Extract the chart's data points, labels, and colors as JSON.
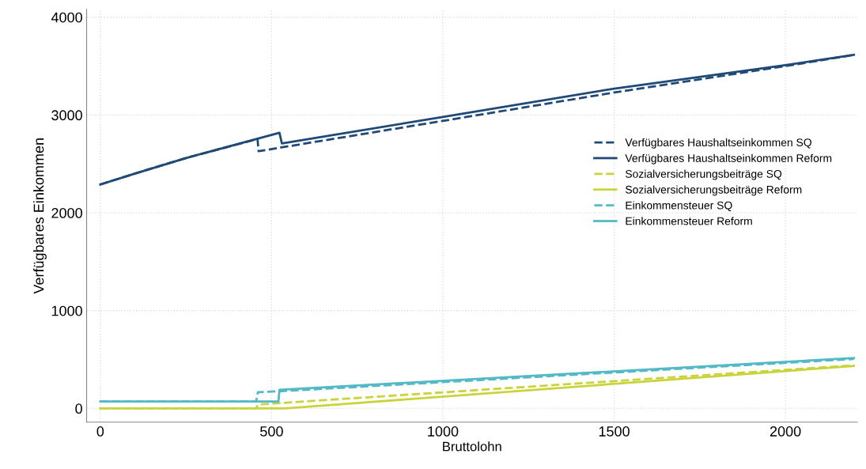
{
  "chart_data": {
    "type": "line",
    "xlabel": "Bruttolohn",
    "ylabel": "Verfügbares Einkommen",
    "xlim": [
      -40,
      2210
    ],
    "ylim": [
      -140,
      4080
    ],
    "xticks": [
      0,
      500,
      1000,
      1500,
      2000
    ],
    "yticks": [
      0,
      1000,
      2000,
      3000,
      4000
    ],
    "grid": true,
    "legend": "right",
    "line_style": "solid",
    "series": [
      {
        "name": "Verfügbares Haushaltseinkommen SQ",
        "color": "#1f4a78",
        "line_style": "dashed",
        "x": [
          0,
          100,
          250,
          459,
          462,
          1000,
          1500,
          2000,
          2200
        ],
        "values": [
          2290,
          2400,
          2560,
          2755,
          2630,
          2940,
          3230,
          3500,
          3615
        ]
      },
      {
        "name": "Verfügbares Haushaltseinkommen Reform",
        "color": "#1f4a78",
        "x": [
          0,
          100,
          250,
          523,
          530,
          1000,
          1500,
          2000,
          2200
        ],
        "values": [
          2290,
          2400,
          2560,
          2818,
          2710,
          2980,
          3270,
          3510,
          3615
        ]
      },
      {
        "name": "Sozialversicherungsbeiträge SQ",
        "color": "#c9d43c",
        "line_style": "dashed",
        "x": [
          0,
          455,
          460,
          2200
        ],
        "values": [
          0,
          0,
          40,
          440
        ]
      },
      {
        "name": "Sozialversicherungsbeiträge Reform",
        "color": "#c9d43c",
        "x": [
          0,
          540,
          2200
        ],
        "values": [
          0,
          0,
          434
        ]
      },
      {
        "name": "Einkommensteuer SQ",
        "color": "#52b9c6",
        "line_style": "dashed",
        "x": [
          0,
          455,
          460,
          523,
          2200
        ],
        "values": [
          71,
          71,
          165,
          175,
          505
        ]
      },
      {
        "name": "Einkommensteuer Reform",
        "color": "#52b9c6",
        "x": [
          0,
          520,
          523,
          2200
        ],
        "values": [
          71,
          71,
          190,
          515
        ]
      }
    ]
  }
}
